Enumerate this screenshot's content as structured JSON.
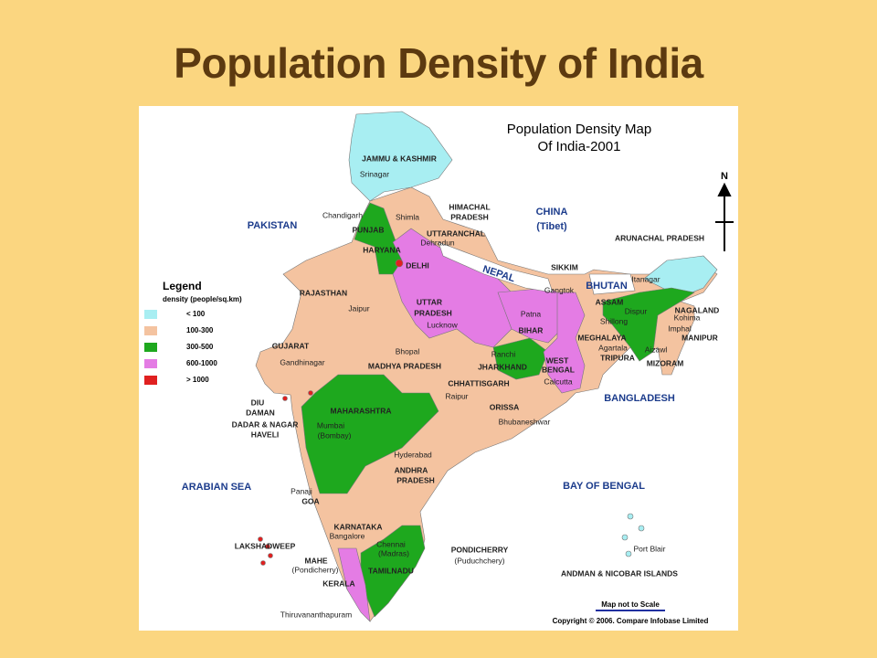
{
  "slide_title": "Population Density of India",
  "map": {
    "title": [
      "Population Density Map",
      "Of India-2001"
    ],
    "compass": "N",
    "legend": {
      "title": "Legend",
      "subtitle": "density (people/sq.km)",
      "items": [
        {
          "label": "< 100",
          "color": "#a8eef2"
        },
        {
          "label": "100-300",
          "color": "#f4c3a0"
        },
        {
          "label": "300-500",
          "color": "#1ea81e"
        },
        {
          "label": "600-1000",
          "color": "#e47ce4"
        },
        {
          "label": "> 1000",
          "color": "#e02020"
        }
      ]
    },
    "labels": [
      "JAMMU & KASHMIR",
      "Srinagar",
      "HIMACHAL",
      "PRADESH",
      "Chandigarh",
      "Shimla",
      "PUNJAB",
      "UTTARANCHAL",
      "Dehradun",
      "HARYANA",
      "DELHI",
      "PAKISTAN",
      "CHINA",
      "(Tibet)",
      "ARUNACHAL PRADESH",
      "NEPAL",
      "SIKKIM",
      "Gangtok",
      "BHUTAN",
      "Itanagar",
      "UTTAR",
      "PRADESH",
      "Lucknow",
      "RAJASTHAN",
      "Jaipur",
      "ASSAM",
      "Dispur",
      "NAGALAND",
      "Kohima",
      "Shillong",
      "Imphal",
      "MANIPUR",
      "Patna",
      "BIHAR",
      "MEGHALAYA",
      "Agartala",
      "TRIPURA",
      "Aizawl",
      "MIZORAM",
      "GUJARAT",
      "Gandhinagar",
      "Bhopal",
      "MADHYA PRADESH",
      "Ranchi",
      "JHARKHAND",
      "WEST",
      "BENGAL",
      "Calcutta",
      "CHHATTISGARH",
      "Raipur",
      "BANGLADESH",
      "DIU",
      "DAMAN",
      "DADAR & NAGAR",
      "HAVELI",
      "MAHARASHTRA",
      "ORISSA",
      "Bhubaneshwar",
      "Mumbai",
      "(Bombay)",
      "Hyderabad",
      "ANDHRA",
      "PRADESH",
      "ARABIAN SEA",
      "BAY OF BENGAL",
      "Panaji",
      "GOA",
      "KARNATAKA",
      "Bangalore",
      "LAKSHADWEEP",
      "MAHE",
      "(Pondicherry)",
      "Chennai",
      "(Madras)",
      "PONDICHERRY",
      "(Puduchchery)",
      "Port Blair",
      "ANDMAN & NICOBAR ISLANDS",
      "KERALA",
      "TAMILNADU",
      "Thiruvananthapuram"
    ],
    "note": "Map not to Scale",
    "copyright": "Copyright © 2006. Compare Infobase Limited"
  }
}
